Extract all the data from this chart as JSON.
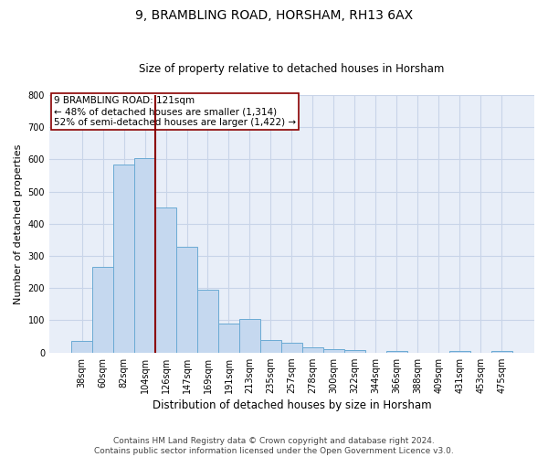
{
  "title_line1": "9, BRAMBLING ROAD, HORSHAM, RH13 6AX",
  "title_line2": "Size of property relative to detached houses in Horsham",
  "xlabel": "Distribution of detached houses by size in Horsham",
  "ylabel": "Number of detached properties",
  "footer_line1": "Contains HM Land Registry data © Crown copyright and database right 2024.",
  "footer_line2": "Contains public sector information licensed under the Open Government Licence v3.0.",
  "categories": [
    "38sqm",
    "60sqm",
    "82sqm",
    "104sqm",
    "126sqm",
    "147sqm",
    "169sqm",
    "191sqm",
    "213sqm",
    "235sqm",
    "257sqm",
    "278sqm",
    "300sqm",
    "322sqm",
    "344sqm",
    "366sqm",
    "388sqm",
    "409sqm",
    "431sqm",
    "453sqm",
    "475sqm"
  ],
  "values": [
    37,
    265,
    585,
    605,
    450,
    328,
    195,
    91,
    103,
    38,
    30,
    15,
    11,
    9,
    0,
    5,
    0,
    0,
    5,
    0,
    5
  ],
  "bar_color": "#c5d8ef",
  "bar_edge_color": "#6aaad4",
  "vline_x": 3.5,
  "vline_color": "#8b0000",
  "annotation_box_text": "9 BRAMBLING ROAD: 121sqm\n← 48% of detached houses are smaller (1,314)\n52% of semi-detached houses are larger (1,422) →",
  "ylim": [
    0,
    800
  ],
  "yticks": [
    0,
    100,
    200,
    300,
    400,
    500,
    600,
    700,
    800
  ],
  "grid_color": "#c8d4e8",
  "background_color": "#e8eef8",
  "title1_fontsize": 10,
  "title2_fontsize": 8.5,
  "ylabel_fontsize": 8,
  "xlabel_fontsize": 8.5,
  "tick_fontsize": 7,
  "ann_fontsize": 7.5,
  "footer_fontsize": 6.5
}
